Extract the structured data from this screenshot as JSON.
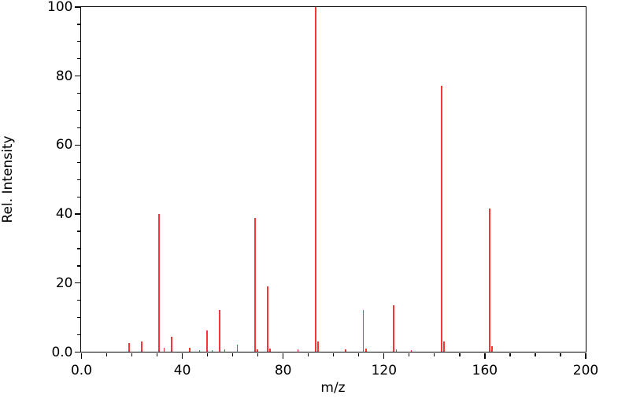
{
  "figure": {
    "background": "#ffffff",
    "frame_color": "#000000",
    "peak_color": "#f93535",
    "text_color": "#000000"
  },
  "chart_data": {
    "type": "bar",
    "subtype": "mass-spectrum-stick-plot",
    "title": "",
    "xlabel": "m/z",
    "ylabel": "Rel. Intensity",
    "xlim": [
      0,
      200
    ],
    "ylim": [
      0,
      100
    ],
    "grid": false,
    "legend": null,
    "x_major_ticks": [
      0,
      40,
      80,
      120,
      160,
      200
    ],
    "x_major_tick_labels": [
      "0.0",
      "40",
      "80",
      "120",
      "160",
      "200"
    ],
    "x_minor_tick_step": 10,
    "y_major_ticks": [
      0,
      20,
      40,
      60,
      80,
      100
    ],
    "y_major_tick_labels": [
      "0.0",
      "20",
      "40",
      "60",
      "80",
      "100"
    ],
    "y_minor_tick_step": 5,
    "series": [
      {
        "name": "relative-intensity",
        "points": [
          {
            "mz": 19,
            "intensity": 2.5
          },
          {
            "mz": 24,
            "intensity": 3.0
          },
          {
            "mz": 31,
            "intensity": 40.0
          },
          {
            "mz": 33,
            "intensity": 1.1
          },
          {
            "mz": 36,
            "intensity": 4.4
          },
          {
            "mz": 43,
            "intensity": 1.1
          },
          {
            "mz": 47,
            "intensity": 0.5
          },
          {
            "mz": 50,
            "intensity": 6.1
          },
          {
            "mz": 52,
            "intensity": 0.4
          },
          {
            "mz": 55,
            "intensity": 12.0
          },
          {
            "mz": 57,
            "intensity": 0.8
          },
          {
            "mz": 62,
            "intensity": 2.1
          },
          {
            "mz": 69,
            "intensity": 38.7
          },
          {
            "mz": 70,
            "intensity": 0.6
          },
          {
            "mz": 74,
            "intensity": 18.9
          },
          {
            "mz": 75,
            "intensity": 0.9
          },
          {
            "mz": 86,
            "intensity": 0.8
          },
          {
            "mz": 93,
            "intensity": 100.0
          },
          {
            "mz": 94,
            "intensity": 3.0
          },
          {
            "mz": 105,
            "intensity": 0.7
          },
          {
            "mz": 112,
            "intensity": 12.1
          },
          {
            "mz": 113,
            "intensity": 1.0
          },
          {
            "mz": 124,
            "intensity": 13.5
          },
          {
            "mz": 125,
            "intensity": 0.8
          },
          {
            "mz": 131,
            "intensity": 0.5
          },
          {
            "mz": 143,
            "intensity": 77.0
          },
          {
            "mz": 144,
            "intensity": 2.9
          },
          {
            "mz": 162,
            "intensity": 41.5
          },
          {
            "mz": 163,
            "intensity": 1.5
          }
        ]
      }
    ]
  }
}
